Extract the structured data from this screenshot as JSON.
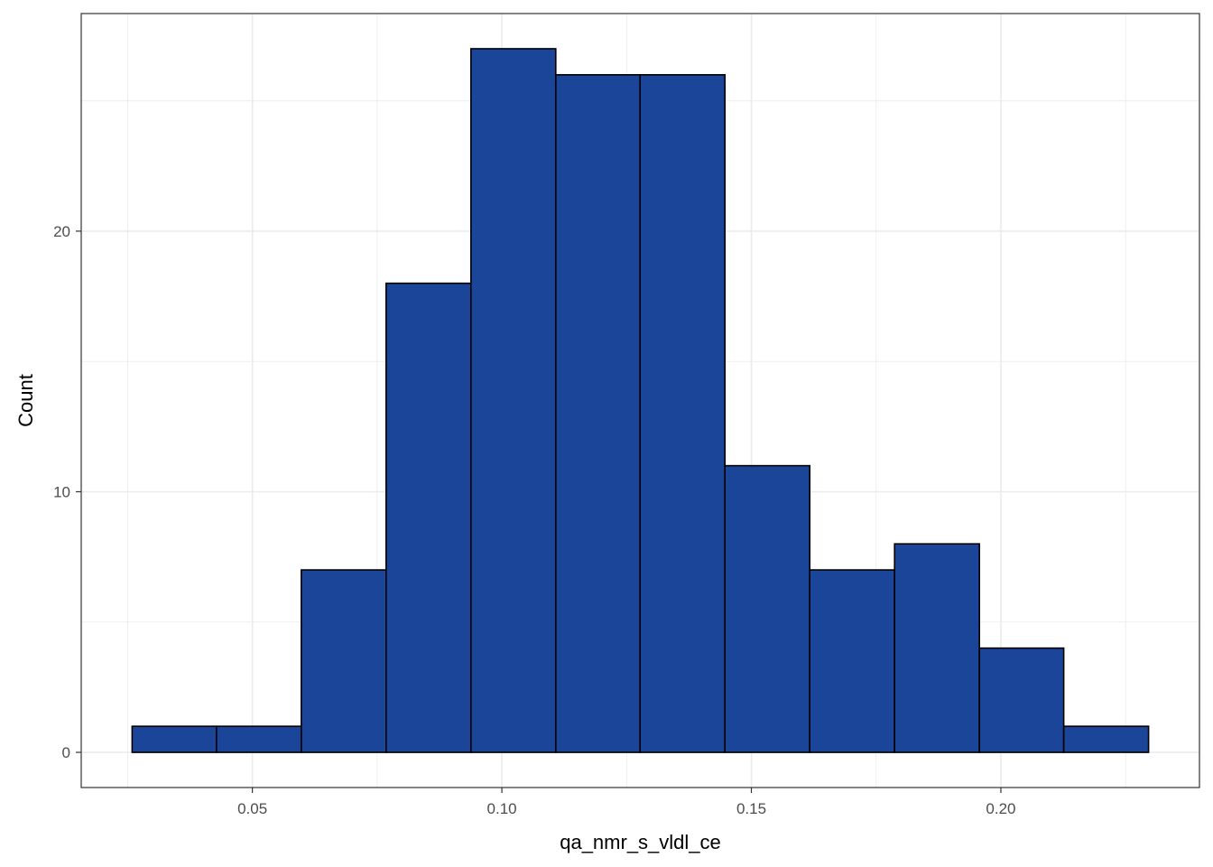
{
  "chart_data": {
    "type": "bar",
    "xlabel": "qa_nmr_s_vldl_ce",
    "ylabel": "Count",
    "bins": [
      {
        "x0": 0.0259,
        "x1": 0.0428,
        "count": 1
      },
      {
        "x0": 0.0428,
        "x1": 0.0598,
        "count": 1
      },
      {
        "x0": 0.0598,
        "x1": 0.0768,
        "count": 7
      },
      {
        "x0": 0.0768,
        "x1": 0.0938,
        "count": 18
      },
      {
        "x0": 0.0938,
        "x1": 0.1108,
        "count": 27
      },
      {
        "x0": 0.1108,
        "x1": 0.1277,
        "count": 26
      },
      {
        "x0": 0.1277,
        "x1": 0.1447,
        "count": 26
      },
      {
        "x0": 0.1447,
        "x1": 0.1617,
        "count": 11
      },
      {
        "x0": 0.1617,
        "x1": 0.1787,
        "count": 7
      },
      {
        "x0": 0.1787,
        "x1": 0.1957,
        "count": 8
      },
      {
        "x0": 0.1957,
        "x1": 0.2126,
        "count": 4
      },
      {
        "x0": 0.2126,
        "x1": 0.2296,
        "count": 1
      }
    ],
    "xlim": [
      0.0157,
      0.2398
    ],
    "ylim": [
      -1.35,
      28.35
    ],
    "x_ticks": [
      0.05,
      0.1,
      0.15,
      0.2
    ],
    "x_tick_labels": [
      "0.05",
      "0.10",
      "0.15",
      "0.20"
    ],
    "y_ticks": [
      0,
      10,
      20
    ],
    "y_tick_labels": [
      "0",
      "10",
      "20"
    ],
    "grid": true,
    "colors": {
      "fill": "#1a4599",
      "outline": "#000000",
      "grid": "#ebebeb",
      "panel_border": "#333333"
    }
  }
}
